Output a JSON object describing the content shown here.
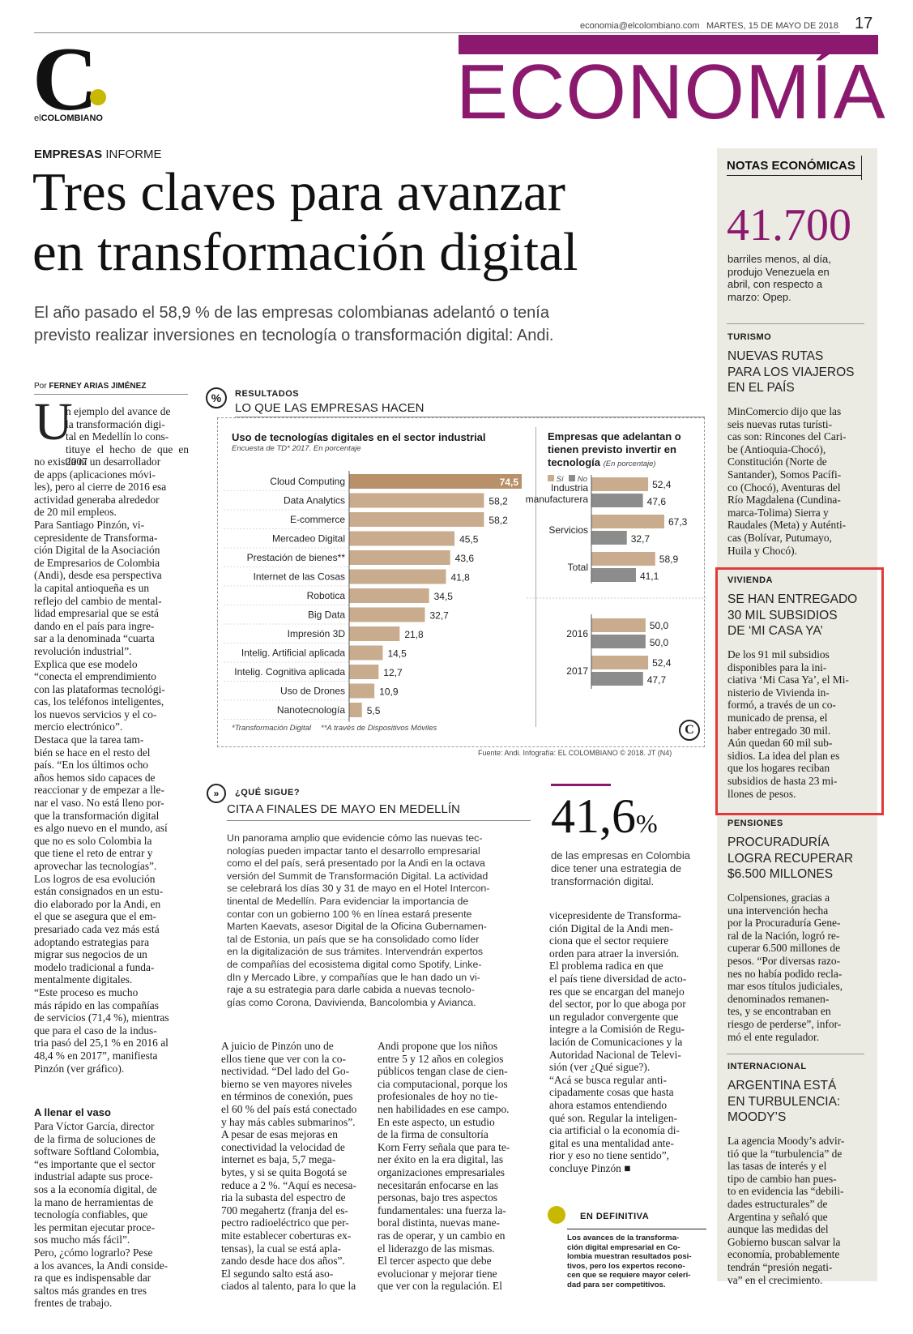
{
  "header": {
    "email": "economia@elcolombiano.com",
    "date": "MARTES, 15 DE MAYO DE 2018",
    "page_number": "17",
    "section": "ECONOMÍA",
    "brand_color": "#8b1a6f",
    "logo": {
      "letter": "C",
      "prefix": "el",
      "name": "COLOMBIANO"
    }
  },
  "article": {
    "kicker_bold": "EMPRESAS",
    "kicker": "INFORME",
    "headline": "Tres claves para avanzar\nen transformación digital",
    "deck": "El año pasado el 58,9 % de las empresas colombianas adelantó o tenía\nprevisto realizar inversiones en tecnología o transformación digital: Andi.",
    "byline_prefix": "Por",
    "byline_author": "FERNEY ARIAS JIMÉNEZ",
    "dropcap": "U",
    "col1_intro": "n ejemplo del avance de\nla transformación digi-\ntal en Medellín lo cons-\ntituye el hecho de que en 2007",
    "col1_body": "no existía ni un desarrollador\nde apps (aplicaciones móvi-\nles), pero al cierre de 2016 esa\nactividad generaba alrededor\nde 20 mil empleos.\n   Para Santiago Pinzón, vi-\ncepresidente de Transforma-\nción Digital de la Asociación\nde Empresarios de Colombia\n(Andi), desde esa perspectiva\nla capital antioqueña es un\nreflejo del cambio de mental-\nlidad empresarial que se está\ndando en el país para ingre-\nsar a la denominada “cuarta\nrevolución industrial”.\n   Explica que ese modelo\n“conecta el emprendimiento\ncon las plataformas tecnológi-\ncas, los teléfonos inteligentes,\nlos nuevos servicios y el co-\nmercio electrónico”.\n   Destaca que la tarea tam-\nbién se hace en el resto del\npaís. “En los últimos ocho\naños hemos sido capaces de\nreaccionar y de empezar a lle-\nnar el vaso. No está lleno por-\nque la transformación digital\nes algo nuevo en el mundo, así\nque no es solo Colombia la\nque tiene el reto de entrar y\naprovechar las tecnologías”.\n   Los logros de esa evolución\nestán consignados en un estu-\ndio elaborado por la Andi, en\nel que se asegura que el em-\npresariado cada vez más está\nadoptando estrategias para\nmigrar sus negocios de un\nmodelo tradicional a funda-\nmentalmente digitales.\n   “Este proceso es mucho\nmás rápido en las compañías\nde servicios (71,4 %), mientras\nque para el caso de la indus-\ntria pasó del 25,1 % en 2016 al\n48,4 % en 2017”, manifiesta\nPinzón (ver gráfico).",
    "col1_subhead": "A llenar el vaso",
    "col1_body2": "   Para Víctor García, director\nde la firma de soluciones de\nsoftware Softland Colombia,\n“es importante que el sector\nindustrial adapte sus proce-\nsos a la economía digital, de\nla mano de herramientas de\ntecnología confiables, que\nles permitan ejecutar proce-\nsos mucho más fácil”.\n   Pero, ¿cómo lograrlo? Pese\na los avances, la Andi conside-\nra que es indispensable dar\nsaltos más grandes en tres\nfrentes de trabajo.",
    "col2_body": "   A juicio de Pinzón uno de\nellos tiene que ver con la co-\nnectividad. “Del lado del Go-\nbierno se ven mayores niveles\nen términos de conexión, pues\nel 60 % del país está conectado\ny hay más cables submarinos”.\n   A pesar de esas mejoras en\nconectividad la velocidad de\ninternet es baja, 5,7 mega-\nbytes, y si se quita Bogotá se\nreduce a 2 %. “Aquí es necesa-\nria la subasta del espectro de\n700 megahertz (franja del es-\npectro radioeléctrico que per-\nmite establecer coberturas ex-\ntensas), la cual se está apla-\nzando desde hace dos años”.\n   El segundo salto está aso-\nciados al talento, para lo que la",
    "col3_body": "Andi propone que los niños\nentre 5 y 12 años en colegios\npúblicos tengan clase de cien-\ncia computacional, porque los\nprofesionales de hoy no tie-\nnen habilidades en ese campo.\n   En este aspecto, un estudio\nde la firma de consultoría\nKorn Ferry señala que para te-\nner éxito en la era digital, las\norganizaciones empresariales\nnecesitarán enfocarse en las\npersonas, bajo tres aspectos\nfundamentales: una fuerza la-\nboral distinta, nuevas mane-\nras de operar, y un cambio en\nel liderazgo de las mismas.\n   El tercer aspecto que debe\nevolucionar y mejorar tiene\nque ver con la regulación. El",
    "col4_body": "vicepresidente de Transforma-\nción Digital de la Andi men-\nciona que el sector requiere\norden para atraer la inversión.\n   El problema radica en que\nel país tiene diversidad de acto-\nres que se encargan del manejo\ndel sector, por lo que aboga por\nun regulador convergente que\nintegre a la Comisión de Regu-\nlación de Comunicaciones y la\nAutoridad Nacional de Televi-\nsión (ver ¿Qué sigue?).\n   “Acá se busca regular anti-\ncipadamente cosas que hasta\nahora estamos entendiendo\nqué son. Regular la inteligen-\ncia artificial o la economía di-\ngital es una mentalidad ante-\nrior y eso no tiene sentido”,\nconcluye Pinzón ■"
  },
  "infographic": {
    "kicker": "RESULTADOS",
    "title": "LO QUE LAS EMPRESAS HACEN",
    "source": "Fuente: Andi. Infografía: EL COLOMBIANO © 2018. JT (N4)",
    "footnote1": "*Transformación Digital",
    "footnote2": "**A través de Dispositivos Móviles"
  },
  "chart_data": [
    {
      "type": "bar",
      "orientation": "horizontal",
      "title": "Uso de tecnologías digitales en el sector industrial",
      "subtitle": "Encuesta de TD* 2017. En porcentaje",
      "categories": [
        "Cloud Computing",
        "Data Analytics",
        "E-commerce",
        "Mercadeo Digital",
        "Prestación de bienes**",
        "Internet de las Cosas",
        "Robotica",
        "Big Data",
        "Impresión 3D",
        "Intelig. Artificial aplicada",
        "Intelig. Cognitiva aplicada",
        "Uso de Drones",
        "Nanotecnología"
      ],
      "values": [
        74.5,
        58.2,
        58.2,
        45.5,
        43.6,
        41.8,
        34.5,
        32.7,
        21.8,
        14.5,
        12.7,
        10.9,
        5.5
      ],
      "labels": [
        "74,5",
        "58,2",
        "58,2",
        "45,5",
        "43,6",
        "41,8",
        "34,5",
        "32,7",
        "21,8",
        "14,5",
        "12,7",
        "10,9",
        "5,5"
      ],
      "bar_color": "#c9ab8e",
      "highlight_color": "#b8906a"
    },
    {
      "type": "bar",
      "orientation": "horizontal",
      "title": "Empresas que adelantan o tienen previsto invertir en tecnología",
      "subtitle": "(En porcentaje)",
      "legend": [
        "Sí",
        "No"
      ],
      "colors": [
        "#c9ab8e",
        "#8c8c8c"
      ],
      "groups": [
        {
          "label": "Industria manufacturera",
          "si": 52.4,
          "no": 47.6,
          "si_label": "52,4",
          "no_label": "47,6"
        },
        {
          "label": "Servicios",
          "si": 67.3,
          "no": 32.7,
          "si_label": "67,3",
          "no_label": "32,7"
        },
        {
          "label": "Total",
          "si": 58.9,
          "no": 41.1,
          "si_label": "58,9",
          "no_label": "41,1"
        },
        {
          "label": "2016",
          "si": 50.0,
          "no": 50.0,
          "si_label": "50,0",
          "no_label": "50,0"
        },
        {
          "label": "2017",
          "si": 52.4,
          "no": 47.7,
          "si_label": "52,4",
          "no_label": "47,7"
        }
      ]
    }
  ],
  "que_sigue": {
    "kicker": "¿QUÉ SIGUE?",
    "title": "CITA A FINALES DE MAYO EN MEDELLÍN",
    "body": "Un panorama amplio que evidencie cómo las nuevas tec-\nnologías pueden impactar tanto el desarrollo empresarial\ncomo el del país, será presentado por la Andi en la octava\nversión del Summit de Transformación Digital. La actividad\nse celebrará los días 30 y 31 de mayo en el Hotel Intercon-\ntinental de Medellín. Para evidenciar la importancia de\ncontar con un gobierno 100 % en línea estará presente\nMarten Kaevats, asesor Digital de la Oficina Gubernamen-\ntal de Estonia, un país que se ha consolidado como líder\nen la digitalización de sus trámites. Intervendrán expertos\nde compañías del ecosistema digital como Spotify, Linke-\ndIn y Mercado Libre, y compañías que le han dado un vi-\nraje a su estrategia para darle cabida a nuevas tecnolo-\ngías como Corona, Davivienda, Bancolombia y Avianca."
  },
  "big_stat": {
    "number": "41,6",
    "unit": "%",
    "text": "de las empresas en Colombia\ndice tener una estrategia de\ntransformación digital."
  },
  "en_definitiva": {
    "kicker": "EN DEFINITIVA",
    "body": "Los avances de la transforma-\nción digital empresarial en Co-\nlombia muestran resultados posi-\ntivos, pero los expertos recono-\ncen que se requiere mayor celeri-\ndad para ser competitivos."
  },
  "sidebar": {
    "title": "NOTAS ECONÓMICAS",
    "stat_number": "41.700",
    "stat_text": "barriles menos, al día,\nprodujo Venezuela en\nabril, con respecto a\nmarzo: Opep.",
    "notes": [
      {
        "kicker": "TURISMO",
        "headline": "NUEVAS RUTAS\nPARA LOS VIAJEROS\nEN EL PAÍS",
        "body": "MinComercio dijo que las\nseis nuevas rutas turísti-\ncas son: Rincones del Cari-\nbe (Antioquia-Chocó),\nConstitución (Norte de\nSantander), Somos Pacífi-\nco (Chocó), Aventuras del\nRío Magdalena (Cundina-\nmarca-Tolima) Sierra y\nRaudales (Meta) y Auténti-\ncas (Bolívar, Putumayo,\nHuila y Chocó)."
      },
      {
        "kicker": "VIVIENDA",
        "headline": "SE HAN ENTREGADO\n30 MIL SUBSIDIOS\nDE ‘MI CASA YA’",
        "body": "De los 91 mil subsidios\ndisponibles para la ini-\nciativa ‘Mi Casa Ya’, el Mi-\nnisterio de Vivienda in-\nformó, a través de un co-\nmunicado de prensa, el\nhaber entregado 30 mil.\nAún quedan 60 mil sub-\nsidios. La idea del plan es\nque los hogares reciban\nsubsidios de hasta 23 mi-\nllones de pesos."
      },
      {
        "kicker": "PENSIONES",
        "headline": "PROCURADURÍA\nLOGRA RECUPERAR\n$6.500 MILLONES",
        "body": "Colpensiones, gracias a\nuna intervención hecha\npor la Procuraduría Gene-\nral de la Nación, logró re-\ncuperar 6.500 millones de\npesos. “Por diversas razo-\nnes no había podido recla-\nmar esos títulos judiciales,\ndenominados remanen-\ntes, y se encontraban en\nriesgo de perderse”, infor-\nmó el ente regulador."
      },
      {
        "kicker": "INTERNACIONAL",
        "headline": "ARGENTINA ESTÁ\nEN TURBULENCIA:\nMOODY’S",
        "body": "La agencia Moody’s advir-\ntió que la “turbulencia” de\nlas tasas de interés y el\ntipo de cambio han pues-\nto en evidencia las “debili-\ndades estructurales” de\nArgentina y señaló que\naunque las medidas del\nGobierno buscan salvar la\neconomía, probablemente\ntendrán “presión negati-\nva” en el crecimiento."
      }
    ]
  }
}
